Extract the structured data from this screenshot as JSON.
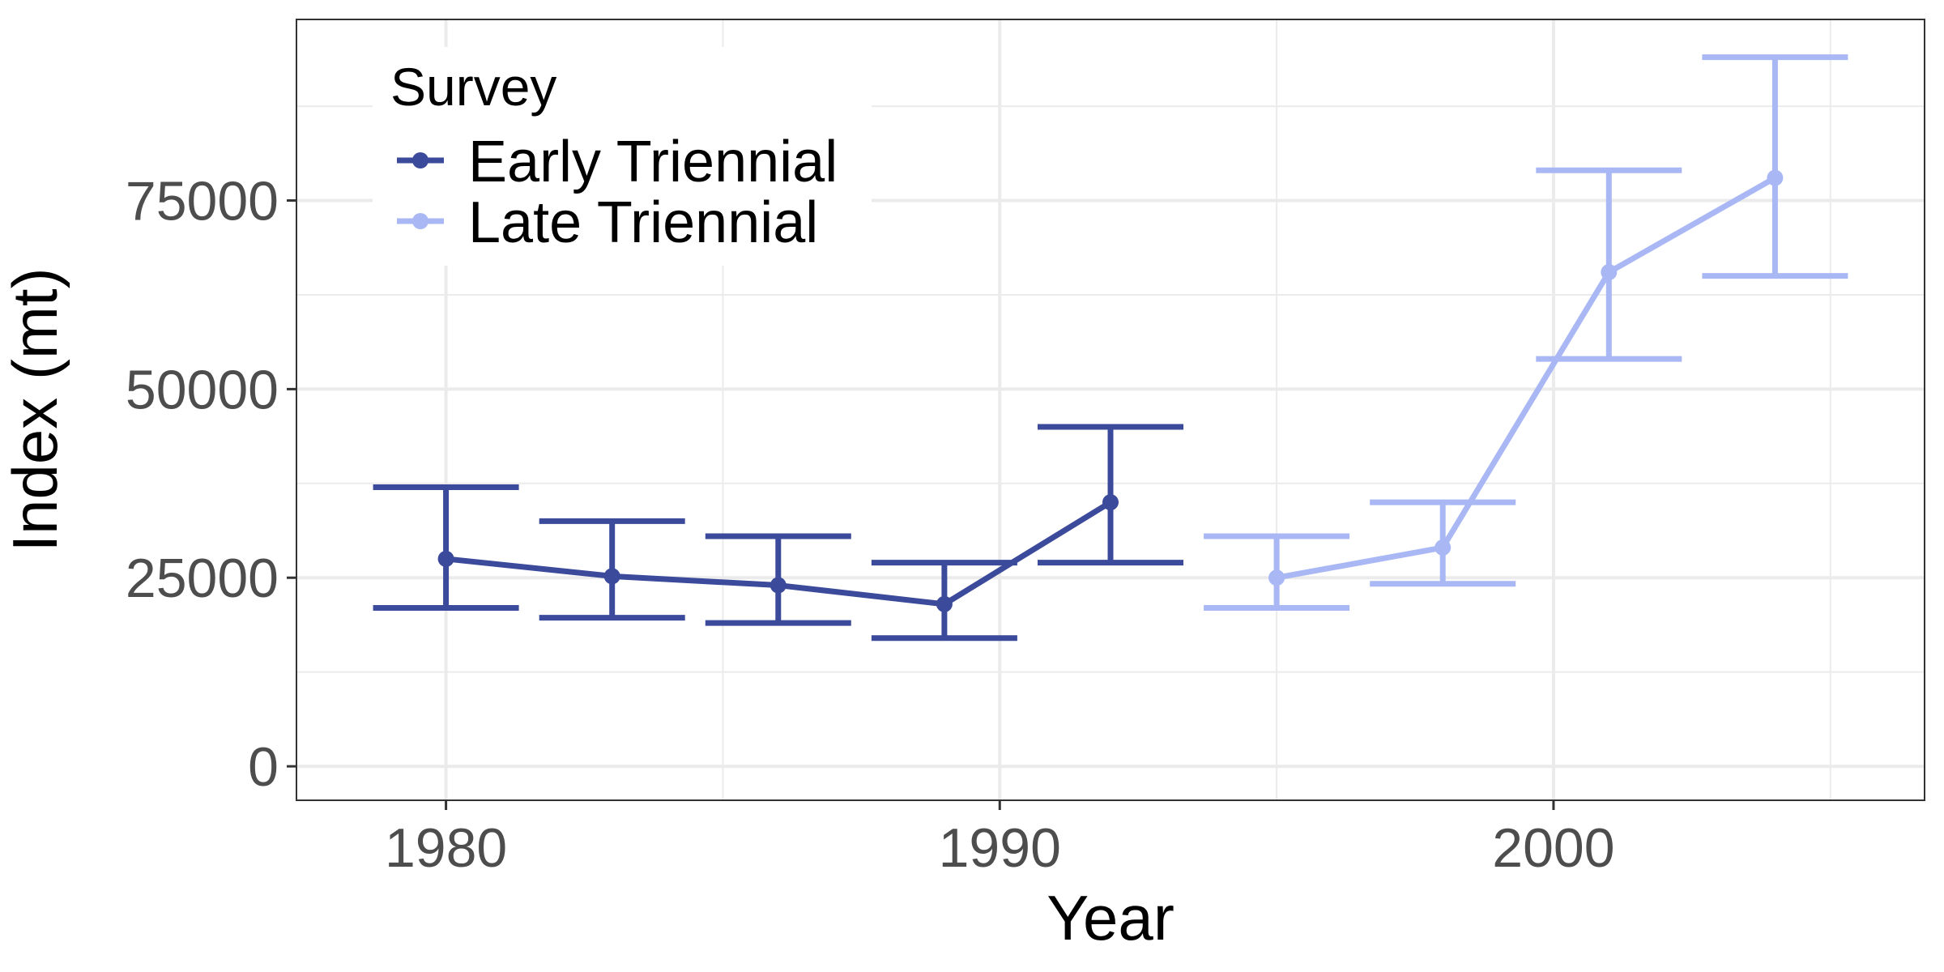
{
  "chart_data": {
    "type": "line",
    "xlabel": "Year",
    "ylabel": "Index (mt)",
    "xlim": [
      1977.3,
      2006.7
    ],
    "ylim": [
      -4500,
      99000
    ],
    "x_ticks": [
      1980,
      1990,
      2000
    ],
    "x_minor_ticks": [
      1985,
      1995,
      2005
    ],
    "y_ticks": [
      0,
      25000,
      50000,
      75000
    ],
    "y_minor_ticks": [
      12500,
      37500,
      62500,
      87500
    ],
    "grid": true,
    "error_bars": true,
    "legend": {
      "title": "Survey",
      "placement": "top-left"
    },
    "series": [
      {
        "name": "Early Triennial",
        "color": "#3b4a9a",
        "points": [
          {
            "x": 1980,
            "y": 27500,
            "lower": 21000,
            "upper": 37000
          },
          {
            "x": 1983,
            "y": 25200,
            "lower": 19700,
            "upper": 32500
          },
          {
            "x": 1986,
            "y": 24000,
            "lower": 19000,
            "upper": 30500
          },
          {
            "x": 1989,
            "y": 21500,
            "lower": 17000,
            "upper": 27000
          },
          {
            "x": 1992,
            "y": 35000,
            "lower": 27000,
            "upper": 45000
          }
        ]
      },
      {
        "name": "Late Triennial",
        "color": "#a9b8f4",
        "points": [
          {
            "x": 1995,
            "y": 25000,
            "lower": 21000,
            "upper": 30500
          },
          {
            "x": 1998,
            "y": 29000,
            "lower": 24200,
            "upper": 35000
          },
          {
            "x": 2001,
            "y": 65500,
            "lower": 54000,
            "upper": 79000
          },
          {
            "x": 2004,
            "y": 78000,
            "lower": 65000,
            "upper": 94000
          }
        ]
      }
    ]
  }
}
